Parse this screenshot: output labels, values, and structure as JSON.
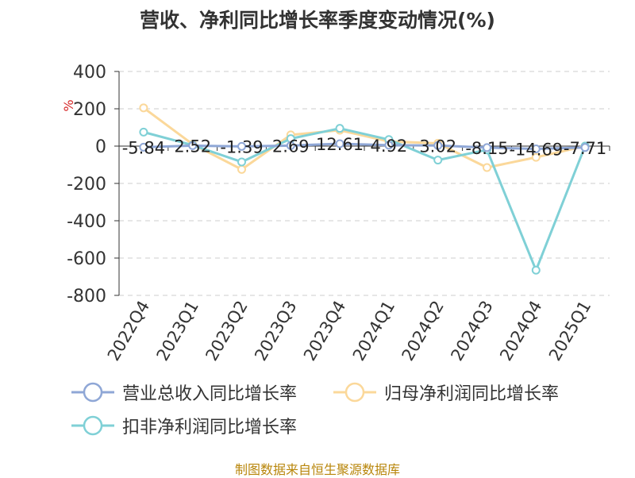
{
  "chart_data": {
    "type": "line",
    "title": "营收、净利同比增长率季度变动情况(%)",
    "ylabel": "%",
    "categories": [
      "2022Q4",
      "2023Q1",
      "2023Q2",
      "2023Q3",
      "2023Q4",
      "2024Q1",
      "2024Q2",
      "2024Q3",
      "2024Q4",
      "2025Q1"
    ],
    "ylim": [
      -800,
      400
    ],
    "yticks": [
      400,
      200,
      0,
      -200,
      -400,
      -600,
      -800
    ],
    "ytick_labels": [
      "400",
      "200",
      "0",
      "-200",
      "-400",
      "-600",
      "-800"
    ],
    "grid": true,
    "legend_position": "bottom",
    "series": [
      {
        "name": "营业总收入同比增长率",
        "color": "#8fa7d6",
        "values": [
          -5.84,
          2.52,
          -1.39,
          2.69,
          12.61,
          4.92,
          3.02,
          -8.15,
          -14.69,
          -7.71
        ],
        "data_labels": [
          "-5.84",
          "2.52",
          "-1.39",
          "2.69",
          "12.61",
          "4.92",
          "3.02",
          "-8.15",
          "-14.69",
          "-7.71"
        ]
      },
      {
        "name": "归母净利润同比增长率",
        "color": "#fbd89a",
        "values": [
          205,
          10,
          -125,
          60,
          85,
          25,
          15,
          -115,
          -60,
          0
        ]
      },
      {
        "name": "扣非净利润同比增长率",
        "color": "#7fd0d6",
        "values": [
          75,
          5,
          -85,
          40,
          95,
          35,
          -75,
          -20,
          -665,
          0
        ]
      }
    ]
  },
  "source_text": "制图数据来自恒生聚源数据库"
}
